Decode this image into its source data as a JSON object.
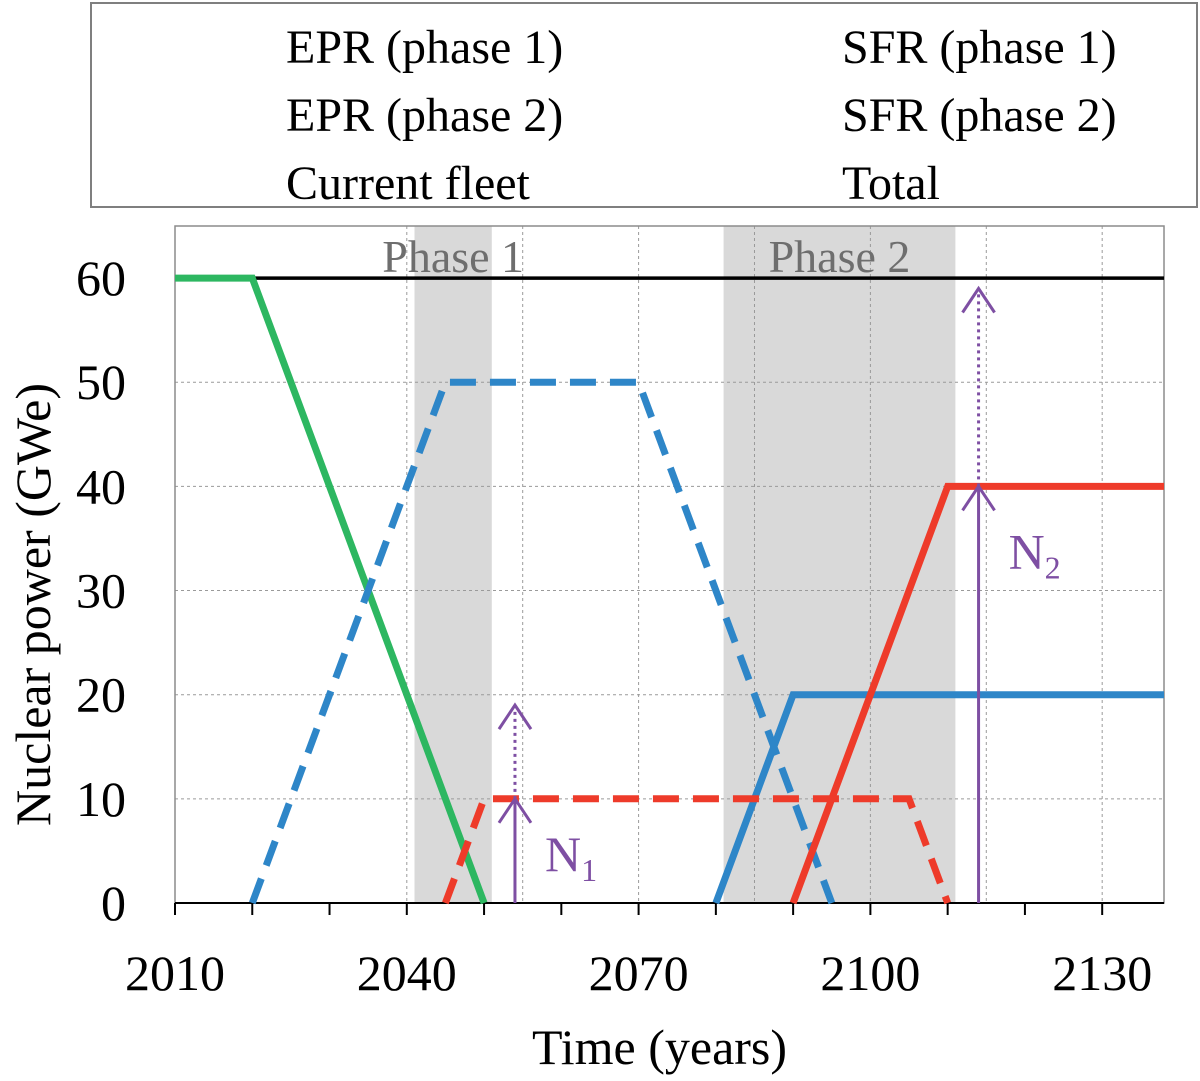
{
  "legend": {
    "items": [
      {
        "label": "EPR (phase 1)",
        "color": "#2E86C8",
        "style": "dashed"
      },
      {
        "label": "SFR (phase 1)",
        "color": "#EE3B2A",
        "style": "dashed"
      },
      {
        "label": "EPR (phase 2)",
        "color": "#2E86C8",
        "style": "solid"
      },
      {
        "label": "SFR (phase 2)",
        "color": "#EE3B2A",
        "style": "solid"
      },
      {
        "label": "Current fleet",
        "color": "#2DB761",
        "style": "solid"
      },
      {
        "label": "Total",
        "color": "#000000",
        "style": "solid"
      }
    ]
  },
  "chart_data": {
    "type": "line",
    "title": "",
    "xlabel": "Time (years)",
    "ylabel": "Nuclear power (GWe)",
    "xlim": [
      2010,
      2138
    ],
    "ylim": [
      0,
      65
    ],
    "xticks": [
      2010,
      2040,
      2070,
      2100,
      2130
    ],
    "yticks": [
      0,
      10,
      20,
      30,
      40,
      50,
      60
    ],
    "grid": true,
    "legend_position": "top",
    "phases": [
      {
        "label": "Phase 1",
        "start": 2041,
        "end": 2051
      },
      {
        "label": "Phase 2",
        "start": 2081,
        "end": 2111
      }
    ],
    "series": [
      {
        "name": "EPR (phase 1)",
        "color": "#2E86C8",
        "dash": true,
        "x": [
          2020,
          2045,
          2070,
          2095
        ],
        "y": [
          0,
          50,
          50,
          0
        ]
      },
      {
        "name": "SFR (phase 1)",
        "color": "#EE3B2A",
        "dash": true,
        "x": [
          2045,
          2050,
          2105,
          2110
        ],
        "y": [
          0,
          10,
          10,
          0
        ]
      },
      {
        "name": "EPR (phase 2)",
        "color": "#2E86C8",
        "dash": false,
        "x": [
          2080,
          2090,
          2138
        ],
        "y": [
          0,
          20,
          20
        ]
      },
      {
        "name": "SFR (phase 2)",
        "color": "#EE3B2A",
        "dash": false,
        "x": [
          2090,
          2110,
          2138
        ],
        "y": [
          0,
          40,
          40
        ]
      },
      {
        "name": "Current fleet",
        "color": "#2DB761",
        "dash": false,
        "x": [
          2010,
          2020,
          2050
        ],
        "y": [
          60,
          60,
          0
        ]
      },
      {
        "name": "Total",
        "color": "#000000",
        "dash": false,
        "x": [
          2010,
          2138
        ],
        "y": [
          60,
          60
        ]
      }
    ],
    "annotations": [
      {
        "label": "N",
        "subscript": "1",
        "x": 2054,
        "y_solid": 10,
        "y_dotted": 19,
        "color": "#7E4FA3"
      },
      {
        "label": "N",
        "subscript": "2",
        "x": 2114,
        "y_solid": 40,
        "y_dotted": 59,
        "color": "#7E4FA3"
      }
    ]
  }
}
